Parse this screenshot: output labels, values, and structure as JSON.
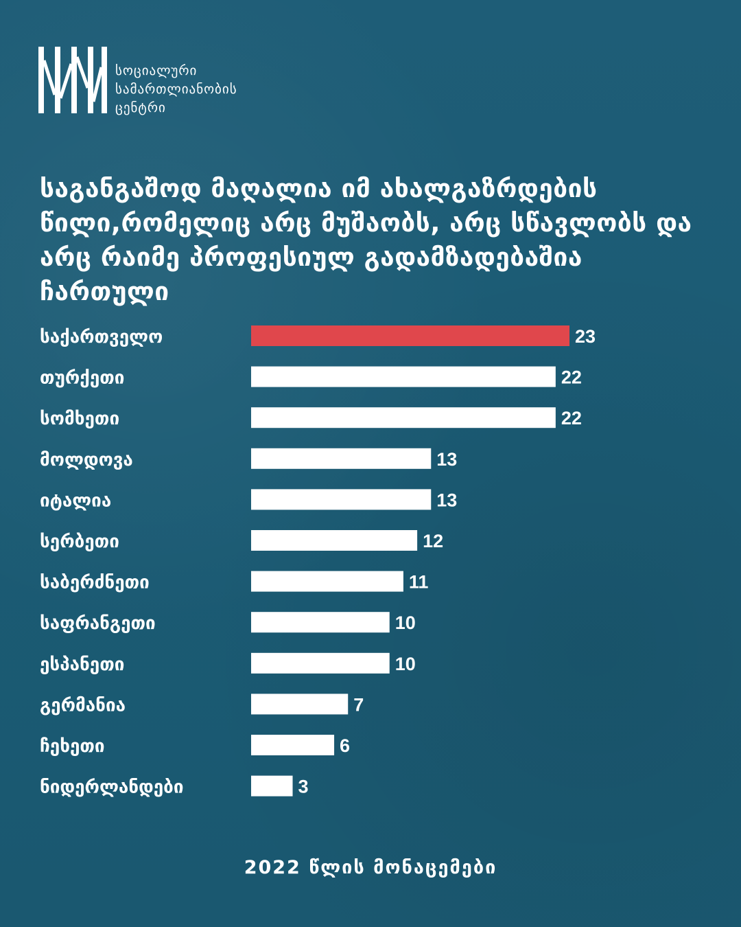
{
  "organization": {
    "name_lines": [
      "სოციალური",
      "სამართლიანობის",
      "ცენტრი"
    ]
  },
  "title": "საგანგაშოდ მაღალია იმ ახალგაზრდების წილი,რომელიც არც მუშაობს, არც სწავლობს და არც რაიმე პროფესიულ გადამზადებაშია ჩართული",
  "footer": "2022 წლის მონაცემები",
  "colors": {
    "highlight": "#e0474c",
    "bar": "#ffffff",
    "background": "#1f5f78"
  },
  "chart_data": {
    "type": "bar",
    "orientation": "horizontal",
    "categories": [
      "საქართველო",
      "თურქეთი",
      "სომხეთი",
      "მოლდოვა",
      "იტალია",
      "სერბეთი",
      "საბერძნეთი",
      "საფრანგეთი",
      "ესპანეთი",
      "გერმანია",
      "ჩეხეთი",
      "ნიდერლანდები"
    ],
    "values": [
      23,
      22,
      22,
      13,
      13,
      12,
      11,
      10,
      10,
      7,
      6,
      3
    ],
    "highlight_index": 0,
    "xlim": [
      0,
      23
    ],
    "grid": false,
    "legend": "none"
  }
}
